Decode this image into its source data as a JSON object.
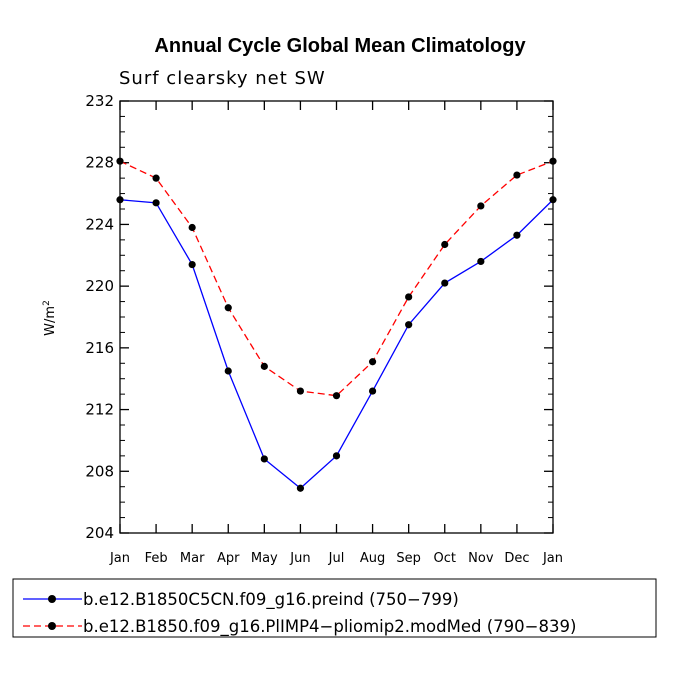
{
  "chart_data": {
    "type": "line",
    "title": "Annual Cycle Global Mean Climatology",
    "subtitle": "Surf clearsky net SW",
    "ylabel_base": "W/m",
    "ylabel_sup": "2",
    "ylim": [
      204,
      232
    ],
    "yticks": [
      204,
      208,
      212,
      216,
      220,
      224,
      228,
      232
    ],
    "categories": [
      "Jan",
      "Feb",
      "Mar",
      "Apr",
      "May",
      "Jun",
      "Jul",
      "Aug",
      "Sep",
      "Oct",
      "Nov",
      "Dec",
      "Jan"
    ],
    "series": [
      {
        "name": "b.e12.B1850C5CN.f09_g16.preind (750−799)",
        "color": "#0000ff",
        "dash": "solid",
        "values": [
          225.6,
          225.4,
          221.4,
          214.5,
          208.8,
          206.9,
          209.0,
          213.2,
          217.5,
          220.2,
          221.6,
          223.3,
          225.6
        ]
      },
      {
        "name": "b.e12.B1850.f09_g16.PlIMP4−pliomip2.modMed (790−839)",
        "color": "#ff0000",
        "dash": "dashed",
        "values": [
          228.1,
          227.0,
          223.8,
          218.6,
          214.8,
          213.2,
          212.9,
          215.1,
          219.3,
          222.7,
          225.2,
          227.2,
          228.1
        ]
      }
    ]
  }
}
